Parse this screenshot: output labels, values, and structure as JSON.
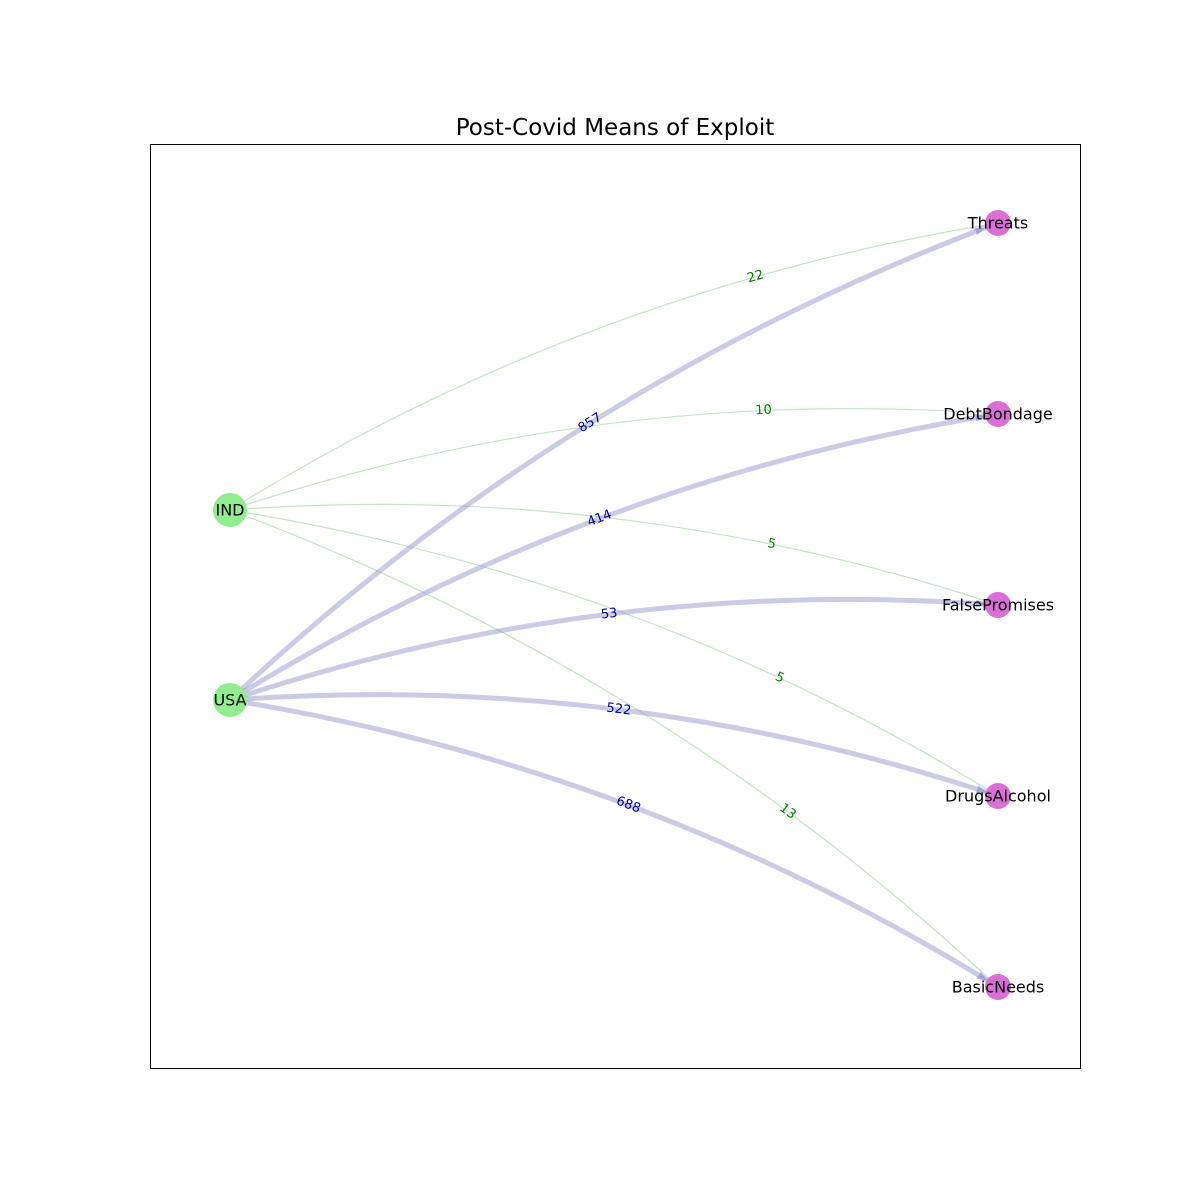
{
  "title": "Post-Covid Means of Exploit",
  "colors": {
    "source_node": "#90EE90",
    "target_node": "#DA70D6",
    "ind_edge": "#2ca02c",
    "ind_label": "#008000",
    "usa_edge": "#8c8cc8",
    "usa_label": "#00008B",
    "frame": "#000000"
  },
  "nodes": [
    {
      "id": "IND",
      "label": "IND",
      "group": "source"
    },
    {
      "id": "USA",
      "label": "USA",
      "group": "source"
    },
    {
      "id": "Threats",
      "label": "Threats",
      "group": "target"
    },
    {
      "id": "DebtBondage",
      "label": "DebtBondage",
      "group": "target"
    },
    {
      "id": "FalsePromises",
      "label": "FalsePromises",
      "group": "target"
    },
    {
      "id": "DrugsAlcohol",
      "label": "DrugsAlcohol",
      "group": "target"
    },
    {
      "id": "BasicNeeds",
      "label": "BasicNeeds",
      "group": "target"
    }
  ],
  "edges": [
    {
      "source": "IND",
      "target": "Threats",
      "weight": "22"
    },
    {
      "source": "IND",
      "target": "DebtBondage",
      "weight": "10"
    },
    {
      "source": "IND",
      "target": "FalsePromises",
      "weight": "5"
    },
    {
      "source": "IND",
      "target": "DrugsAlcohol",
      "weight": "5"
    },
    {
      "source": "IND",
      "target": "BasicNeeds",
      "weight": "13"
    },
    {
      "source": "USA",
      "target": "Threats",
      "weight": "857"
    },
    {
      "source": "USA",
      "target": "DebtBondage",
      "weight": "414"
    },
    {
      "source": "USA",
      "target": "FalsePromises",
      "weight": "53"
    },
    {
      "source": "USA",
      "target": "DrugsAlcohol",
      "weight": "522"
    },
    {
      "source": "USA",
      "target": "BasicNeeds",
      "weight": "688"
    }
  ]
}
